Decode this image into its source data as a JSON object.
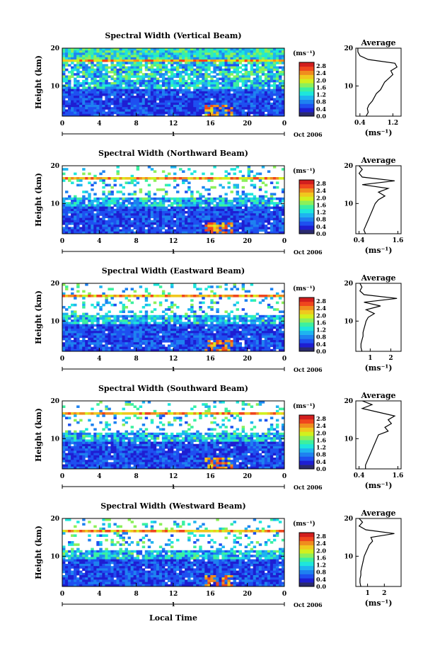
{
  "figure": {
    "xlabel": "Local Time",
    "date_label": "Oct 2006",
    "day_marker": "1",
    "unit_label": "(ms⁻¹)"
  },
  "colors": {
    "scale": [
      "#2a2a6e",
      "#1e1ed2",
      "#1e50f0",
      "#1e82f0",
      "#1eb4f0",
      "#1ee6dc",
      "#3cf0a0",
      "#8cf05a",
      "#d2f01e",
      "#f0c81e",
      "#f08c1e",
      "#f0461e",
      "#d21e1e"
    ]
  },
  "chart_data": [
    {
      "type": "heatmap",
      "title": "Spectral Width (Vertical Beam)",
      "ylabel": "Height (km)",
      "x_ticks": [
        "0",
        "4",
        "8",
        "12",
        "16",
        "20",
        "0"
      ],
      "y_ticks": [
        "10",
        "20"
      ],
      "xlim": [
        0,
        24
      ],
      "ylim": [
        2,
        20
      ],
      "colorbar_ticks": [
        "0.0",
        "0.4",
        "0.8",
        "1.2",
        "1.6",
        "2.0",
        "2.4",
        "2.8"
      ],
      "colorbar_range": [
        0,
        3.0
      ],
      "profile": {
        "title": "Average",
        "xlabel": "(ms⁻¹)",
        "x_ticks": [
          "0.4",
          "1.2"
        ],
        "x_tick_values": [
          0.4,
          1.2
        ],
        "xlim": [
          0.3,
          1.4
        ],
        "y_ticks": [
          "10",
          "20"
        ],
        "heights": [
          2,
          3,
          4,
          5,
          6,
          7,
          8,
          9,
          10,
          11,
          12,
          13,
          14,
          15,
          16,
          17,
          18,
          19,
          20
        ],
        "values": [
          0.55,
          0.6,
          0.58,
          0.62,
          0.7,
          0.75,
          0.8,
          0.9,
          0.95,
          1.0,
          1.1,
          1.2,
          1.15,
          1.3,
          1.25,
          0.6,
          0.4,
          0.35,
          0.35
        ]
      }
    },
    {
      "type": "heatmap",
      "title": "Spectral Width (Northward Beam)",
      "ylabel": "Height (km)",
      "x_ticks": [
        "0",
        "4",
        "8",
        "12",
        "16",
        "20",
        "0"
      ],
      "y_ticks": [
        "10",
        "20"
      ],
      "xlim": [
        0,
        24
      ],
      "ylim": [
        2,
        20
      ],
      "colorbar_ticks": [
        "0.0",
        "0.4",
        "0.8",
        "1.2",
        "1.6",
        "2.0",
        "2.4",
        "2.8"
      ],
      "colorbar_range": [
        0,
        3.0
      ],
      "profile": {
        "title": "Average",
        "xlabel": "(ms⁻¹)",
        "x_ticks": [
          "0.4",
          "1.6"
        ],
        "x_tick_values": [
          0.4,
          1.6
        ],
        "xlim": [
          0.3,
          1.7
        ],
        "y_ticks": [
          "10",
          "20"
        ],
        "heights": [
          2,
          3,
          4,
          5,
          6,
          7,
          8,
          9,
          10,
          11,
          12,
          13,
          14,
          15,
          16,
          17,
          18,
          19,
          20
        ],
        "values": [
          0.6,
          0.55,
          0.6,
          0.65,
          0.7,
          0.75,
          0.8,
          0.85,
          0.9,
          1.0,
          1.2,
          1.0,
          1.3,
          0.5,
          1.5,
          0.5,
          0.4,
          0.5,
          0.4
        ]
      }
    },
    {
      "type": "heatmap",
      "title": "Spectral Width (Eastward Beam)",
      "ylabel": "Height (km)",
      "x_ticks": [
        "0",
        "4",
        "8",
        "12",
        "16",
        "20",
        "0"
      ],
      "y_ticks": [
        "10",
        "20"
      ],
      "xlim": [
        0,
        24
      ],
      "ylim": [
        2,
        20
      ],
      "colorbar_ticks": [
        "0.0",
        "0.4",
        "0.8",
        "1.2",
        "1.6",
        "2.0",
        "2.4",
        "2.8"
      ],
      "colorbar_range": [
        0,
        3.0
      ],
      "profile": {
        "title": "Average",
        "xlabel": "(ms⁻¹)",
        "x_ticks": [
          "1",
          "2"
        ],
        "x_tick_values": [
          1,
          2
        ],
        "xlim": [
          0.3,
          2.5
        ],
        "y_ticks": [
          "10",
          "20"
        ],
        "heights": [
          2,
          3,
          4,
          5,
          6,
          7,
          8,
          9,
          10,
          11,
          12,
          13,
          14,
          15,
          16,
          17,
          18,
          19,
          20
        ],
        "values": [
          0.6,
          0.55,
          0.55,
          0.6,
          0.65,
          0.65,
          0.7,
          0.75,
          0.8,
          0.9,
          1.2,
          0.8,
          1.5,
          0.7,
          2.3,
          0.7,
          0.5,
          0.6,
          0.5
        ]
      }
    },
    {
      "type": "heatmap",
      "title": "Spectral Width (Southward Beam)",
      "ylabel": "Height (km)",
      "x_ticks": [
        "0",
        "4",
        "8",
        "12",
        "16",
        "20",
        "0"
      ],
      "y_ticks": [
        "10",
        "20"
      ],
      "xlim": [
        0,
        24
      ],
      "ylim": [
        2,
        20
      ],
      "colorbar_ticks": [
        "0.0",
        "0.4",
        "0.8",
        "1.2",
        "1.6",
        "2.0",
        "2.4",
        "2.8"
      ],
      "colorbar_range": [
        0,
        3.0
      ],
      "profile": {
        "title": "Average",
        "xlabel": "(ms⁻¹)",
        "x_ticks": [
          "0.4",
          "1.6"
        ],
        "x_tick_values": [
          0.4,
          1.6
        ],
        "xlim": [
          0.3,
          1.7
        ],
        "y_ticks": [
          "10",
          "20"
        ],
        "heights": [
          2,
          3,
          4,
          5,
          6,
          7,
          8,
          9,
          10,
          11,
          12,
          13,
          14,
          15,
          16,
          17,
          18,
          19,
          20
        ],
        "values": [
          0.6,
          0.6,
          0.65,
          0.7,
          0.75,
          0.8,
          0.85,
          0.9,
          0.95,
          1.0,
          1.3,
          1.2,
          1.4,
          1.3,
          1.5,
          1.0,
          0.5,
          0.8,
          0.5
        ]
      }
    },
    {
      "type": "heatmap",
      "title": "Spectral Width (Westward Beam)",
      "ylabel": "Height (km)",
      "x_ticks": [
        "0",
        "4",
        "8",
        "12",
        "16",
        "20",
        "0"
      ],
      "y_ticks": [
        "10",
        "20"
      ],
      "xlim": [
        0,
        24
      ],
      "ylim": [
        2,
        20
      ],
      "colorbar_ticks": [
        "0.0",
        "0.4",
        "0.8",
        "1.2",
        "1.6",
        "2.0",
        "2.4",
        "2.8"
      ],
      "colorbar_range": [
        0,
        3.0
      ],
      "profile": {
        "title": "Average",
        "xlabel": "(ms⁻¹)",
        "x_ticks": [
          "1",
          "2"
        ],
        "x_tick_values": [
          1,
          2
        ],
        "xlim": [
          0.3,
          3.0
        ],
        "y_ticks": [
          "10",
          "20"
        ],
        "heights": [
          2,
          3,
          4,
          5,
          6,
          7,
          8,
          9,
          10,
          11,
          12,
          13,
          14,
          15,
          16,
          17,
          18,
          19,
          20
        ],
        "values": [
          0.6,
          0.55,
          0.55,
          0.6,
          0.6,
          0.65,
          0.7,
          0.75,
          0.8,
          0.9,
          1.0,
          1.1,
          1.3,
          1.2,
          2.6,
          0.9,
          0.5,
          0.7,
          0.5
        ]
      }
    }
  ]
}
